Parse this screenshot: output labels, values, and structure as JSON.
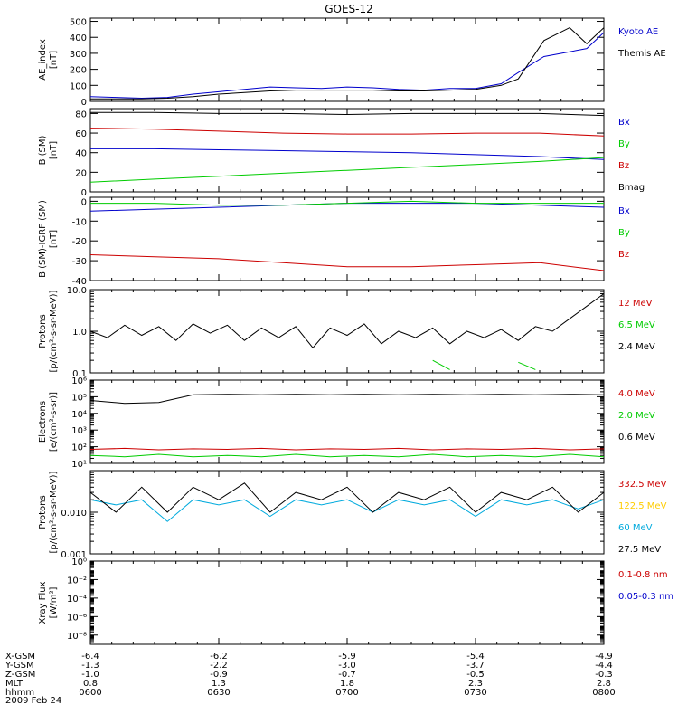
{
  "title": "GOES-12",
  "colors": {
    "black": "#000000",
    "blue": "#0000cc",
    "green": "#00cc00",
    "red": "#cc0000",
    "cyan": "#00aadd",
    "yellow": "#ffcc00"
  },
  "footer": {
    "rows": [
      {
        "label": "X-GSM",
        "values": [
          "-6.4",
          "-6.2",
          "-5.9",
          "-5.4",
          "-4.9"
        ]
      },
      {
        "label": "Y-GSM",
        "values": [
          "-1.3",
          "-2.2",
          "-3.0",
          "-3.7",
          "-4.4"
        ]
      },
      {
        "label": "Z-GSM",
        "values": [
          "-1.0",
          "-0.9",
          "-0.7",
          "-0.5",
          "-0.3"
        ]
      },
      {
        "label": "MLT",
        "values": [
          "0.8",
          "1.3",
          "1.8",
          "2.3",
          "2.8"
        ]
      },
      {
        "label": "hhmm",
        "values": [
          "0600",
          "0630",
          "0700",
          "0730",
          "0800"
        ]
      }
    ],
    "date": "2009 Feb 24"
  },
  "chart_data": [
    {
      "type": "line",
      "ylabel": [
        "AE_index",
        "[nT]"
      ],
      "yscale": "linear",
      "ylim": [
        0,
        520
      ],
      "ticks": [
        {
          "v": 0,
          "label": "0"
        },
        {
          "v": 100,
          "label": "100"
        },
        {
          "v": 200,
          "label": "200"
        },
        {
          "v": 300,
          "label": "300"
        },
        {
          "v": 400,
          "label": "400"
        },
        {
          "v": 500,
          "label": "500"
        }
      ],
      "x": [
        0,
        6,
        12,
        18,
        24,
        30,
        36,
        42,
        48,
        54,
        60,
        66,
        72,
        78,
        84,
        90,
        96,
        100,
        106,
        112,
        116,
        120
      ],
      "series": [
        {
          "name": "Kyoto AE",
          "color": "blue",
          "values": [
            30,
            25,
            20,
            25,
            45,
            60,
            75,
            90,
            85,
            80,
            90,
            85,
            75,
            70,
            80,
            80,
            110,
            180,
            280,
            310,
            330,
            430
          ]
        },
        {
          "name": "Themis AE",
          "color": "black",
          "values": [
            15,
            15,
            15,
            20,
            30,
            45,
            55,
            65,
            70,
            70,
            70,
            70,
            65,
            65,
            70,
            75,
            100,
            140,
            380,
            460,
            360,
            460
          ]
        }
      ]
    },
    {
      "type": "line",
      "ylabel": [
        "B (SM)",
        "[nT]"
      ],
      "yscale": "linear",
      "ylim": [
        0,
        85
      ],
      "ticks": [
        {
          "v": 0,
          "label": "0"
        },
        {
          "v": 20,
          "label": "20"
        },
        {
          "v": 40,
          "label": "40"
        },
        {
          "v": 60,
          "label": "60"
        },
        {
          "v": 80,
          "label": "80"
        }
      ],
      "x": [
        0,
        15,
        30,
        45,
        60,
        75,
        90,
        105,
        120
      ],
      "series": [
        {
          "name": "Bx",
          "color": "blue",
          "values": [
            44,
            44,
            43,
            42,
            41,
            40,
            38,
            36,
            33
          ]
        },
        {
          "name": "By",
          "color": "green",
          "values": [
            10,
            13,
            16,
            19,
            22,
            25,
            28,
            31,
            35
          ]
        },
        {
          "name": "Bz",
          "color": "red",
          "values": [
            65,
            64,
            62,
            60,
            59,
            59,
            60,
            60,
            57
          ]
        },
        {
          "name": "Bmag",
          "color": "black",
          "values": [
            81,
            81,
            80,
            80,
            79,
            80,
            80,
            80,
            78
          ]
        }
      ]
    },
    {
      "type": "line",
      "ylabel": [
        "B (SM)-IGRF (SM)",
        "[nT]"
      ],
      "yscale": "linear",
      "ylim": [
        -40,
        2
      ],
      "ticks": [
        {
          "v": 0,
          "label": "0"
        },
        {
          "v": -10,
          "label": "-10"
        },
        {
          "v": -20,
          "label": "-20"
        },
        {
          "v": -30,
          "label": "-30"
        },
        {
          "v": -40,
          "label": "-40"
        }
      ],
      "x": [
        0,
        15,
        30,
        45,
        60,
        75,
        90,
        105,
        120
      ],
      "series": [
        {
          "name": "Bx",
          "color": "blue",
          "values": [
            -5,
            -4,
            -3,
            -2,
            -1,
            -1,
            -1,
            -2,
            -3
          ]
        },
        {
          "name": "By",
          "color": "green",
          "values": [
            -1,
            -1,
            -2,
            -2,
            -1,
            0,
            -1,
            -1,
            -1
          ]
        },
        {
          "name": "Bz",
          "color": "red",
          "values": [
            -27,
            -28,
            -29,
            -31,
            -33,
            -33,
            -32,
            -31,
            -35
          ]
        }
      ]
    },
    {
      "type": "line",
      "ylabel": [
        "Protons",
        "[p/(cm²-s-sr-MeV)]"
      ],
      "yscale": "log",
      "ylim": [
        0.1,
        10
      ],
      "ticks": [
        {
          "v": 0.1,
          "label": "0.1"
        },
        {
          "v": 1,
          "label": "1.0"
        },
        {
          "v": 10,
          "label": "10.0"
        }
      ],
      "x": [
        0,
        4,
        8,
        12,
        16,
        20,
        24,
        28,
        32,
        36,
        40,
        44,
        48,
        52,
        56,
        60,
        64,
        68,
        72,
        76,
        80,
        84,
        88,
        92,
        96,
        100,
        104,
        108,
        112,
        116,
        120
      ],
      "series": [
        {
          "name": "12 MeV",
          "color": "red",
          "values": [
            null,
            null,
            null,
            null,
            null,
            null,
            null,
            null,
            null,
            null,
            null,
            null,
            null,
            null,
            null,
            null,
            null,
            null,
            null,
            null,
            null,
            null,
            null,
            null,
            null,
            null,
            null,
            null,
            null,
            null,
            null
          ]
        },
        {
          "name": "6.5 MeV",
          "color": "green",
          "values": [
            null,
            0.25,
            null,
            null,
            null,
            null,
            null,
            null,
            0.12,
            null,
            null,
            null,
            null,
            null,
            null,
            0.3,
            null,
            0.15,
            null,
            null,
            0.2,
            0.12,
            null,
            null,
            null,
            0.18,
            0.12,
            null,
            null,
            null,
            null
          ]
        },
        {
          "name": "2.4 MeV",
          "color": "black",
          "values": [
            1.0,
            0.7,
            1.4,
            0.8,
            1.3,
            0.6,
            1.5,
            0.9,
            1.4,
            0.6,
            1.2,
            0.7,
            1.3,
            0.4,
            1.2,
            0.8,
            1.5,
            0.5,
            1.0,
            0.7,
            1.2,
            0.5,
            1.0,
            0.7,
            1.1,
            0.6,
            1.3,
            1.0,
            2.0,
            4.0,
            8.0
          ]
        },
        {
          "name": "",
          "color": "red",
          "values": [
            null,
            null,
            null,
            0.15,
            null,
            null,
            null,
            null,
            null,
            0.12,
            null,
            null,
            null,
            null,
            null,
            null,
            null,
            null,
            0.12,
            null,
            null,
            null,
            null,
            0.14,
            null,
            null,
            null,
            null,
            null,
            null,
            null
          ]
        }
      ]
    },
    {
      "type": "line",
      "ylabel": [
        "Electrons",
        "[e/(cm²-s-sr)]"
      ],
      "yscale": "log",
      "ylim": [
        10,
        1000000
      ],
      "ticks": [
        {
          "v": 10,
          "label": "10¹"
        },
        {
          "v": 100,
          "label": "10²"
        },
        {
          "v": 1000,
          "label": "10³"
        },
        {
          "v": 10000,
          "label": "10⁴"
        },
        {
          "v": 100000,
          "label": "10⁵"
        },
        {
          "v": 1000000,
          "label": "10⁶"
        }
      ],
      "x": [
        0,
        8,
        16,
        24,
        32,
        40,
        48,
        56,
        64,
        72,
        80,
        88,
        96,
        104,
        112,
        120
      ],
      "series": [
        {
          "name": "4.0 MeV",
          "color": "red",
          "values": [
            70,
            80,
            65,
            75,
            70,
            80,
            65,
            75,
            70,
            80,
            65,
            75,
            70,
            80,
            65,
            75
          ]
        },
        {
          "name": "2.0 MeV",
          "color": "green",
          "values": [
            30,
            25,
            35,
            25,
            30,
            25,
            35,
            25,
            30,
            25,
            35,
            25,
            30,
            25,
            35,
            25
          ]
        },
        {
          "name": "0.6 MeV",
          "color": "black",
          "values": [
            60000,
            40000,
            45000,
            130000,
            140000,
            130000,
            140000,
            130000,
            140000,
            130000,
            140000,
            130000,
            140000,
            130000,
            140000,
            130000
          ]
        }
      ]
    },
    {
      "type": "line",
      "ylabel": [
        "Protons",
        "[p/(cm²-s-sr-MeV)]"
      ],
      "yscale": "log",
      "ylim": [
        0.001,
        0.1
      ],
      "ticks": [
        {
          "v": 0.001,
          "label": "0.001"
        },
        {
          "v": 0.01,
          "label": "0.010"
        }
      ],
      "x": [
        0,
        6,
        12,
        18,
        24,
        30,
        36,
        42,
        48,
        54,
        60,
        66,
        72,
        78,
        84,
        90,
        96,
        102,
        108,
        114,
        120
      ],
      "series": [
        {
          "name": "332.5 MeV",
          "color": "red",
          "values": [
            null,
            null,
            null,
            null,
            null,
            null,
            null,
            null,
            null,
            null,
            null,
            null,
            null,
            null,
            null,
            null,
            null,
            null,
            null,
            null,
            null
          ]
        },
        {
          "name": "122.5 MeV",
          "color": "yellow",
          "values": [
            null,
            null,
            null,
            null,
            null,
            null,
            null,
            null,
            null,
            null,
            null,
            null,
            null,
            null,
            null,
            null,
            null,
            null,
            null,
            null,
            null
          ]
        },
        {
          "name": "60 MeV",
          "color": "cyan",
          "values": [
            0.02,
            0.015,
            0.02,
            0.006,
            0.02,
            0.015,
            0.02,
            0.008,
            0.02,
            0.015,
            0.02,
            0.01,
            0.02,
            0.015,
            0.02,
            0.008,
            0.02,
            0.015,
            0.02,
            0.012,
            0.02
          ]
        },
        {
          "name": "27.5 MeV",
          "color": "black",
          "values": [
            0.03,
            0.01,
            0.04,
            0.01,
            0.04,
            0.02,
            0.05,
            0.01,
            0.03,
            0.02,
            0.04,
            0.01,
            0.03,
            0.02,
            0.04,
            0.01,
            0.03,
            0.02,
            0.04,
            0.01,
            0.03
          ]
        }
      ]
    },
    {
      "type": "line",
      "ylabel": [
        "Xray Flux",
        "[W/m²]"
      ],
      "yscale": "log",
      "ylim": [
        1e-09,
        1
      ],
      "ticks": [
        {
          "v": 1,
          "label": "10⁰"
        },
        {
          "v": 0.01,
          "label": "10⁻²"
        },
        {
          "v": 0.0001,
          "label": "10⁻⁴"
        },
        {
          "v": 1e-06,
          "label": "10⁻⁶"
        },
        {
          "v": 1e-08,
          "label": "10⁻⁸"
        }
      ],
      "x": [],
      "series": [
        {
          "name": "0.1-0.8 nm",
          "color": "red",
          "values": []
        },
        {
          "name": "0.05-0.3 nm",
          "color": "blue",
          "values": []
        }
      ]
    }
  ]
}
